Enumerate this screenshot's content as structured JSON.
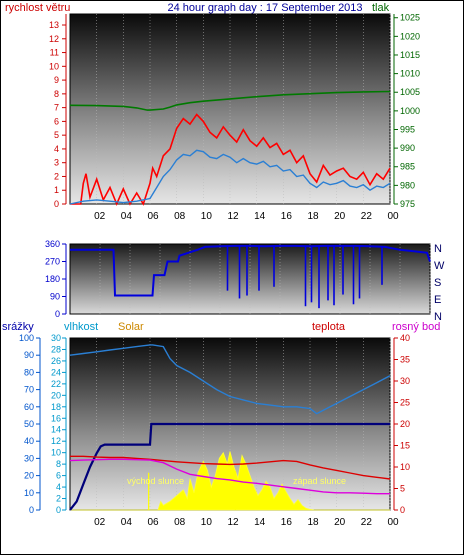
{
  "chart_data": [
    {
      "type": "line",
      "title": "24 hour graph day : 17 September 2013",
      "y_left_label": "rychlost větru",
      "y_right_label": "tlak",
      "x_ticks": [
        "02",
        "04",
        "06",
        "08",
        "10",
        "12",
        "14",
        "16",
        "18",
        "20",
        "22",
        "00"
      ],
      "y_left_ticks": [
        0,
        1,
        2,
        3,
        4,
        5,
        6,
        7,
        8,
        9,
        10,
        11,
        12,
        13
      ],
      "y_right_ticks": [
        975,
        980,
        985,
        990,
        995,
        1000,
        1005,
        1010,
        1015,
        1020,
        1025
      ],
      "y_left_range": [
        0,
        13.8
      ],
      "y_right_range": [
        975,
        1026
      ],
      "x_range": [
        0,
        24
      ],
      "colors": {
        "gust": "#ff0000",
        "avg": "#2a7fd4",
        "pressure": "#007a00",
        "left_axis": "#cc0000",
        "right_axis": "#006600"
      },
      "series": [
        {
          "key": "gust",
          "x": [
            0,
            0.8,
            1,
            1.2,
            1.5,
            2,
            2.5,
            3,
            3.5,
            4,
            4.5,
            5,
            5.5,
            6,
            6.2,
            6.5,
            7,
            7.5,
            8,
            8.5,
            9,
            9.5,
            10,
            10.5,
            11,
            11.5,
            12,
            12.5,
            13,
            13.5,
            14,
            14.5,
            15,
            15.5,
            16,
            16.5,
            17,
            17.5,
            18,
            18.5,
            19,
            19.5,
            20,
            20.5,
            21,
            21.5,
            22,
            22.5,
            23,
            23.5,
            24
          ],
          "y": [
            0,
            0,
            1.5,
            2.2,
            0.5,
            1.8,
            0.3,
            1.2,
            0,
            1.1,
            0,
            0.8,
            0,
            1.5,
            2.6,
            2.0,
            3.5,
            4.0,
            5.5,
            6.2,
            5.8,
            6.5,
            6.0,
            5.2,
            4.8,
            5.6,
            5.0,
            4.5,
            5.4,
            4.6,
            4.2,
            4.8,
            4.1,
            4.4,
            3.6,
            3.9,
            3.0,
            3.5,
            2.2,
            1.6,
            2.8,
            2.1,
            2.4,
            2.6,
            2.0,
            1.8,
            2.3,
            1.4,
            2.2,
            1.8,
            2.6
          ]
        },
        {
          "key": "avg",
          "x": [
            0,
            1,
            2,
            3,
            4,
            5,
            6,
            6.5,
            7,
            7.5,
            8,
            8.5,
            9,
            9.5,
            10,
            10.5,
            11,
            11.5,
            12,
            12.5,
            13,
            13.5,
            14,
            14.5,
            15,
            15.5,
            16,
            16.5,
            17,
            17.5,
            18,
            18.5,
            19,
            19.5,
            20,
            20.5,
            21,
            21.5,
            22,
            22.5,
            23,
            23.5,
            24
          ],
          "y": [
            0,
            0.2,
            0.3,
            0.2,
            0.1,
            0.2,
            0.4,
            1.2,
            2.0,
            2.5,
            3.2,
            3.6,
            3.5,
            3.9,
            3.8,
            3.4,
            3.3,
            3.6,
            3.4,
            3.0,
            3.3,
            3.0,
            2.9,
            3.1,
            2.7,
            2.8,
            2.4,
            2.5,
            2.0,
            2.1,
            1.5,
            1.2,
            1.6,
            1.4,
            1.5,
            1.7,
            1.3,
            1.2,
            1.4,
            1.0,
            1.3,
            1.2,
            1.5
          ]
        },
        {
          "key": "pressure",
          "axis": "right",
          "x": [
            0,
            2,
            4,
            5,
            5.8,
            6,
            7,
            7.5,
            8,
            9,
            10,
            11,
            12,
            14,
            16,
            18,
            20,
            22,
            24
          ],
          "y": [
            1001.5,
            1001.4,
            1001.2,
            1000.8,
            1000.2,
            1000.2,
            1000.5,
            1001.0,
            1001.6,
            1002.2,
            1002.6,
            1002.9,
            1003.2,
            1003.8,
            1004.3,
            1004.6,
            1004.9,
            1005.1,
            1005.2
          ]
        }
      ]
    },
    {
      "type": "line",
      "y_ticks": [
        0,
        90,
        180,
        270,
        360
      ],
      "y_range": [
        0,
        360
      ],
      "right_labels": [
        "N",
        "W",
        "S",
        "E",
        "N"
      ],
      "colors": {
        "dir": "#0000dd",
        "axis": "#0000cc"
      },
      "series": [
        {
          "key": "dir",
          "x": [
            0,
            2,
            2.9,
            3,
            5.5,
            5.6,
            6.3,
            6.5,
            7.2,
            7.3,
            8.5,
            9,
            10,
            11,
            12,
            13,
            14,
            15,
            16,
            17,
            18,
            19,
            20,
            21,
            22,
            23,
            23.8,
            24
          ],
          "y": [
            330,
            330,
            330,
            95,
            95,
            200,
            200,
            270,
            270,
            300,
            330,
            345,
            348,
            350,
            350,
            348,
            350,
            350,
            348,
            350,
            350,
            350,
            348,
            345,
            330,
            322,
            315,
            270
          ]
        },
        {
          "key": "dir-spikes",
          "spike_x": [
            10.5,
            11.3,
            11.8,
            12.6,
            13.6,
            15.7,
            16.1,
            16.6,
            17.2,
            17.6,
            18.2,
            18.9,
            19.3,
            20.8
          ],
          "spike_y": [
            120,
            80,
            95,
            120,
            140,
            40,
            60,
            30,
            70,
            45,
            100,
            50,
            80,
            150
          ]
        }
      ]
    },
    {
      "type": "line",
      "labels": {
        "rain": "srážky",
        "humidity": "vlhkost",
        "solar": "Solar",
        "temp": "teplota",
        "dew": "rosný bod",
        "sunrise": "východ slunce",
        "sunset": "západ slunce"
      },
      "rain_ticks": [
        0,
        10,
        20,
        30,
        40,
        50,
        60,
        70,
        80,
        90,
        100
      ],
      "rain_range": [
        0,
        100
      ],
      "hum_ticks": [
        0,
        2,
        4,
        6,
        8,
        10,
        12,
        14,
        16,
        18,
        20,
        22,
        24,
        26,
        28,
        30
      ],
      "hum_range": [
        0,
        30
      ],
      "temp_ticks": [
        0,
        5,
        10,
        15,
        20,
        25,
        30,
        35,
        40
      ],
      "temp_range": [
        0,
        40
      ],
      "colors": {
        "rain": "#00007a",
        "humidity": "#2a7fd4",
        "solar": "#ffff00",
        "temp": "#dd0000",
        "dew": "#dd00dd",
        "rain_axis": "#0055cc",
        "hum_axis": "#0099cc",
        "temp_axis": "#cc0000",
        "dew_axis": "#cc00cc",
        "solar_label": "#cc8800",
        "sun_text": "#ffff66"
      },
      "series": [
        {
          "key": "humidity",
          "x": [
            0,
            1,
            2,
            3,
            4,
            5,
            6,
            6.2,
            7,
            7.5,
            8,
            9,
            10,
            11,
            12,
            13,
            14,
            15,
            16,
            17,
            18,
            18.5,
            19,
            20,
            21,
            22,
            23,
            24
          ],
          "y": [
            90,
            91,
            92,
            93,
            94,
            95,
            96,
            96,
            95,
            88,
            84,
            80,
            75,
            70,
            66,
            64,
            62,
            61,
            60,
            60,
            59,
            56,
            58,
            62,
            66,
            70,
            74,
            78
          ]
        },
        {
          "key": "rain",
          "x": [
            0,
            0.5,
            1,
            1.5,
            2,
            2.3,
            2.6,
            3,
            4,
            5,
            6,
            6.1,
            7,
            10,
            15,
            20,
            24
          ],
          "y": [
            0,
            5,
            15,
            25,
            33,
            37,
            38,
            38,
            38,
            38,
            38,
            50,
            50,
            50,
            50,
            50,
            50
          ]
        },
        {
          "key": "temp",
          "axis": "temp",
          "x": [
            0,
            1,
            2,
            3,
            4,
            5,
            6,
            7,
            8,
            9,
            10,
            11,
            12,
            13,
            14,
            15,
            16,
            17,
            18,
            19,
            20,
            21,
            22,
            23,
            24
          ],
          "y": [
            12.5,
            12.5,
            12.3,
            12.2,
            12.2,
            12.0,
            11.8,
            11.5,
            11.2,
            11.0,
            10.8,
            10.7,
            10.6,
            10.7,
            10.9,
            11.2,
            11.5,
            11.3,
            10.5,
            9.8,
            9.2,
            8.6,
            8.0,
            7.6,
            7.2
          ]
        },
        {
          "key": "dew",
          "axis": "temp",
          "x": [
            0,
            1,
            2,
            3,
            4,
            5,
            6,
            7,
            8,
            9,
            10,
            11,
            12,
            13,
            14,
            15,
            16,
            17,
            18,
            19,
            20,
            21,
            22,
            23,
            24
          ],
          "y": [
            11.5,
            11.6,
            11.7,
            11.8,
            11.8,
            11.7,
            11.6,
            11.0,
            9.5,
            8.3,
            7.8,
            7.3,
            7.0,
            6.5,
            6.2,
            5.8,
            5.4,
            5.0,
            4.6,
            4.2,
            4.0,
            4.0,
            3.9,
            3.8,
            3.8
          ]
        },
        {
          "key": "solar",
          "axis": "hum",
          "x": [
            0,
            6.6,
            6.8,
            7,
            7.5,
            8,
            8.5,
            8.8,
            9,
            9.3,
            9.6,
            10,
            10.3,
            10.6,
            10.9,
            11.2,
            11.5,
            11.8,
            12,
            12.3,
            12.6,
            12.9,
            13.2,
            13.5,
            13.8,
            14.1,
            14.4,
            14.7,
            15,
            15.3,
            15.6,
            15.9,
            16.2,
            16.5,
            16.8,
            17.1,
            17.4,
            17.7,
            18,
            18.3,
            24
          ],
          "y": [
            0,
            0,
            1.5,
            0.8,
            1.5,
            2.5,
            3.5,
            2.0,
            5.5,
            3.0,
            6.5,
            8.5,
            7.0,
            4.0,
            6.0,
            9.0,
            10.0,
            8.0,
            10.2,
            7.5,
            5.5,
            9.5,
            8.0,
            6.0,
            4.0,
            2.5,
            3.5,
            5.0,
            4.0,
            2.0,
            3.0,
            4.5,
            3.2,
            2.0,
            1.0,
            1.8,
            0.8,
            0.3,
            0.1,
            0,
            0
          ]
        }
      ],
      "spikes": [
        {
          "x": 5.9,
          "value": 6.5,
          "axis": "hum"
        },
        {
          "x": 12.4,
          "value": 6.8,
          "axis": "hum"
        }
      ]
    }
  ]
}
